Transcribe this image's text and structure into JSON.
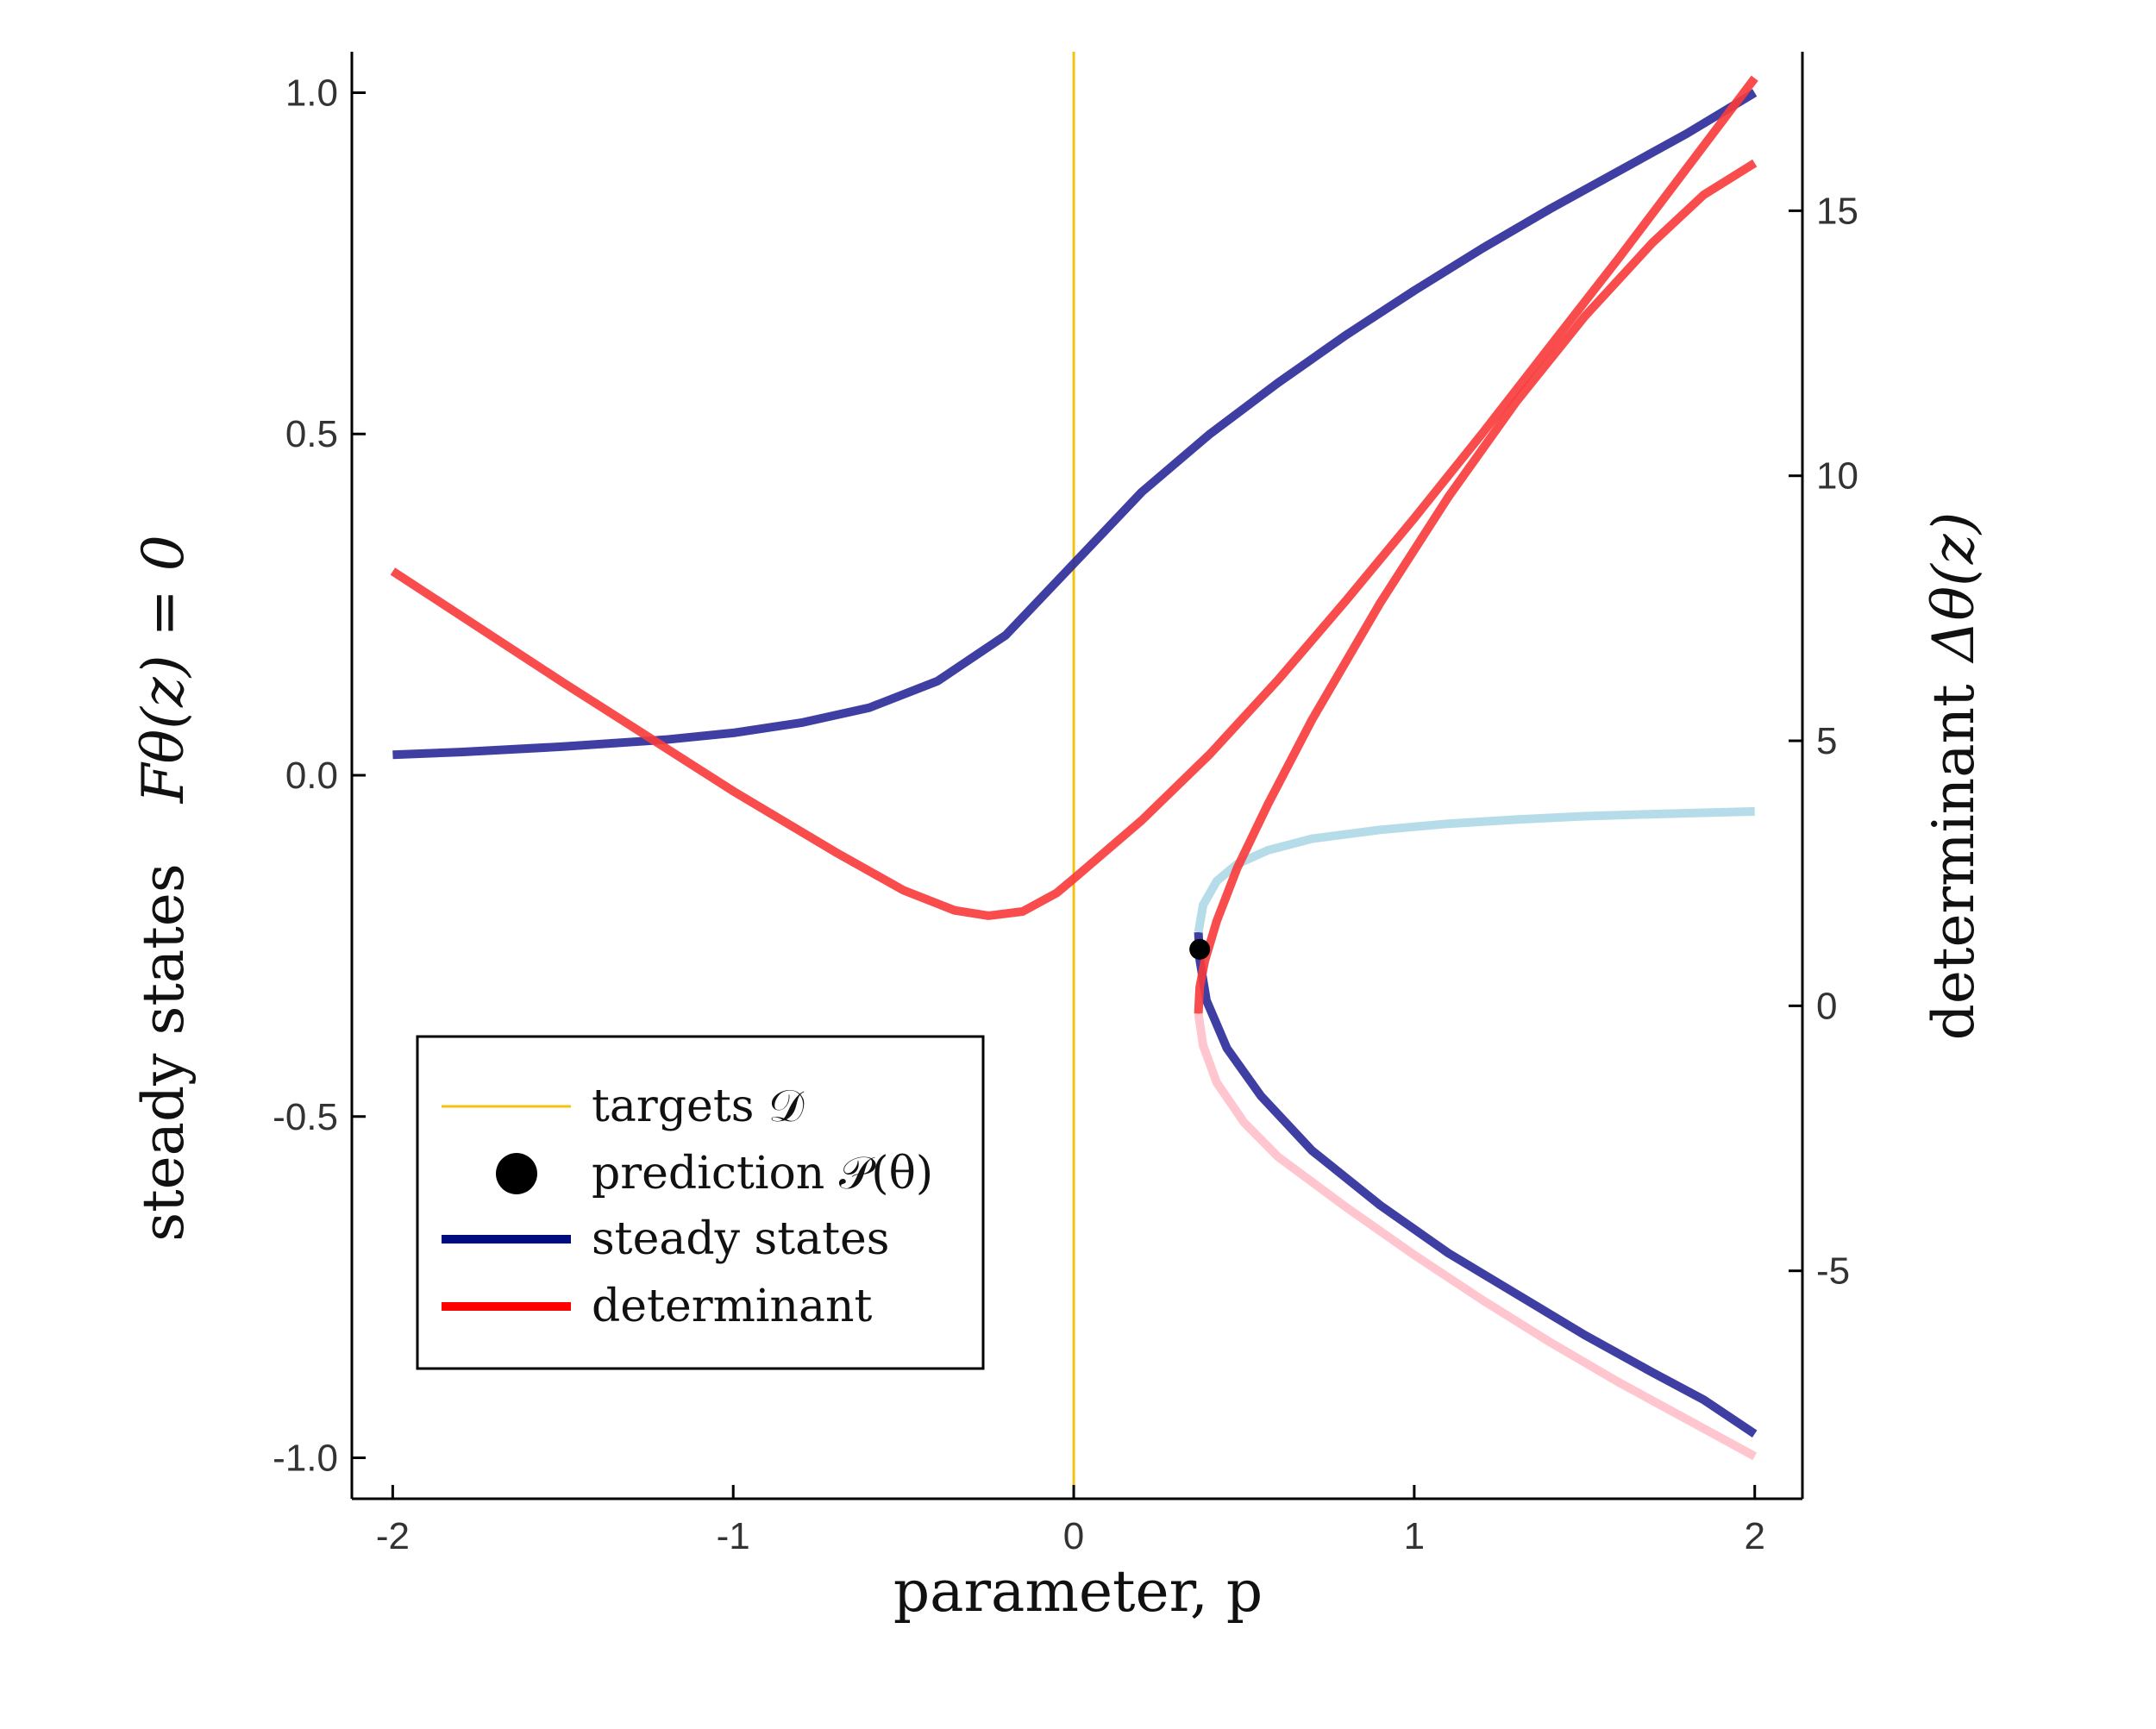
{
  "chart_data": {
    "type": "line",
    "xlabel": "parameter, p",
    "ylabel_left": "steady states    Fθ(z) = 0",
    "ylabel_left_parts": {
      "plain": "steady states",
      "math": "Fθ(z) = 0"
    },
    "ylabel_right": "determinant Δθ(z)",
    "ylabel_right_parts": {
      "plain": "determinant",
      "math": "Δθ(z)"
    },
    "xlim": [
      -2.12,
      2.14
    ],
    "ylim_left": [
      -1.06,
      1.06
    ],
    "ylim_right": [
      -9.3,
      18.0
    ],
    "x_ticks": [
      -2,
      -1,
      0,
      1,
      2
    ],
    "x_tick_labels": [
      "-2",
      "-1",
      "0",
      "1",
      "2"
    ],
    "y_left_ticks": [
      1.0,
      0.5,
      0.0,
      -0.5,
      -1.0
    ],
    "y_left_tick_labels": [
      "1.0",
      "0.5",
      "0.0",
      "-0.5",
      "-1.0"
    ],
    "y_right_ticks": [
      15,
      10,
      5,
      0,
      -5
    ],
    "y_right_tick_labels": [
      "15",
      "10",
      "5",
      "0",
      "-5"
    ],
    "grid": false,
    "legend_placement": "bottom-left",
    "legend": [
      {
        "label": "targets 𝒟",
        "marker": "line-thin",
        "color": "#f2c40f"
      },
      {
        "label": "prediction 𝒫(θ)",
        "marker": "dot",
        "color": "#000000"
      },
      {
        "label": "steady states",
        "marker": "line-thick",
        "color": "#000c7d"
      },
      {
        "label": "determinant",
        "marker": "line-thick",
        "color": "#ff0000"
      }
    ],
    "targets": {
      "x": 0.0,
      "color": "#f2c40f"
    },
    "prediction": {
      "x": 0.37,
      "y": -0.255,
      "color": "#000000"
    },
    "series": [
      {
        "id": "steady-states-stable-upper",
        "axis": "left",
        "color": "#2a2a99",
        "points": [
          [
            -2.0,
            0.03
          ],
          [
            -1.8,
            0.034
          ],
          [
            -1.5,
            0.042
          ],
          [
            -1.2,
            0.052
          ],
          [
            -1.0,
            0.062
          ],
          [
            -0.8,
            0.077
          ],
          [
            -0.6,
            0.099
          ],
          [
            -0.4,
            0.138
          ],
          [
            -0.2,
            0.205
          ],
          [
            0.0,
            0.31
          ],
          [
            0.2,
            0.415
          ],
          [
            0.4,
            0.5
          ],
          [
            0.6,
            0.575
          ],
          [
            0.8,
            0.645
          ],
          [
            1.0,
            0.71
          ],
          [
            1.2,
            0.772
          ],
          [
            1.4,
            0.83
          ],
          [
            1.6,
            0.885
          ],
          [
            1.8,
            0.94
          ],
          [
            2.0,
            1.0
          ]
        ]
      },
      {
        "id": "steady-states-stable-lower",
        "axis": "left",
        "color": "#2a2a99",
        "points": [
          [
            0.366,
            -0.23
          ],
          [
            0.37,
            -0.27
          ],
          [
            0.39,
            -0.33
          ],
          [
            0.45,
            -0.4
          ],
          [
            0.55,
            -0.47
          ],
          [
            0.7,
            -0.55
          ],
          [
            0.9,
            -0.63
          ],
          [
            1.1,
            -0.7
          ],
          [
            1.3,
            -0.76
          ],
          [
            1.5,
            -0.82
          ],
          [
            1.7,
            -0.875
          ],
          [
            1.85,
            -0.915
          ],
          [
            2.0,
            -0.965
          ]
        ]
      },
      {
        "id": "steady-states-unstable",
        "axis": "left",
        "color": "#add8e6",
        "points": [
          [
            0.366,
            -0.23
          ],
          [
            0.38,
            -0.19
          ],
          [
            0.42,
            -0.155
          ],
          [
            0.48,
            -0.13
          ],
          [
            0.57,
            -0.11
          ],
          [
            0.7,
            -0.093
          ],
          [
            0.9,
            -0.08
          ],
          [
            1.1,
            -0.071
          ],
          [
            1.3,
            -0.065
          ],
          [
            1.5,
            -0.06
          ],
          [
            1.7,
            -0.057
          ],
          [
            1.85,
            -0.055
          ],
          [
            2.0,
            -0.053
          ]
        ]
      },
      {
        "id": "determinant-upper",
        "axis": "right",
        "color": "#f83a3a",
        "points": [
          [
            -2.0,
            8.2
          ],
          [
            -1.5,
            6.1
          ],
          [
            -1.0,
            4.05
          ],
          [
            -0.7,
            2.9
          ],
          [
            -0.5,
            2.18
          ],
          [
            -0.35,
            1.8
          ],
          [
            -0.25,
            1.7
          ],
          [
            -0.15,
            1.78
          ],
          [
            -0.05,
            2.13
          ],
          [
            0.0,
            2.4
          ],
          [
            0.2,
            3.5
          ],
          [
            0.4,
            4.75
          ],
          [
            0.6,
            6.15
          ],
          [
            0.8,
            7.65
          ],
          [
            1.0,
            9.2
          ],
          [
            1.2,
            10.8
          ],
          [
            1.4,
            12.45
          ],
          [
            1.6,
            14.1
          ],
          [
            1.8,
            15.8
          ],
          [
            2.0,
            17.5
          ]
        ]
      },
      {
        "id": "determinant-stable-lower-branch",
        "axis": "right",
        "color": "#f83a3a",
        "points": [
          [
            0.366,
            -0.15
          ],
          [
            0.37,
            0.35
          ],
          [
            0.385,
            0.85
          ],
          [
            0.42,
            1.6
          ],
          [
            0.48,
            2.6
          ],
          [
            0.57,
            3.8
          ],
          [
            0.7,
            5.4
          ],
          [
            0.9,
            7.6
          ],
          [
            1.1,
            9.6
          ],
          [
            1.3,
            11.4
          ],
          [
            1.5,
            13.0
          ],
          [
            1.7,
            14.4
          ],
          [
            1.85,
            15.3
          ],
          [
            2.0,
            15.9
          ]
        ]
      },
      {
        "id": "determinant-unstable-branch",
        "axis": "right",
        "color": "#ffc0cb",
        "points": [
          [
            0.366,
            -0.15
          ],
          [
            0.38,
            -0.75
          ],
          [
            0.42,
            -1.45
          ],
          [
            0.5,
            -2.2
          ],
          [
            0.6,
            -2.85
          ],
          [
            0.8,
            -3.8
          ],
          [
            1.0,
            -4.7
          ],
          [
            1.2,
            -5.55
          ],
          [
            1.4,
            -6.35
          ],
          [
            1.6,
            -7.1
          ],
          [
            1.8,
            -7.8
          ],
          [
            2.0,
            -8.5
          ]
        ]
      }
    ]
  }
}
